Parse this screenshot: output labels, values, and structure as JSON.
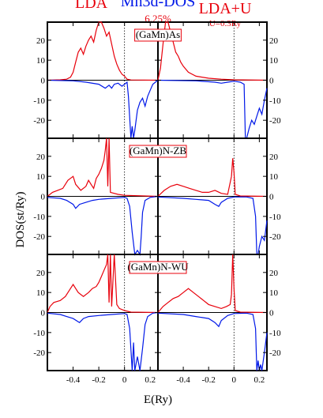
{
  "header": {
    "left_title": "LDA",
    "center_title": "Mn3d-DOS",
    "center_subtitle": "6.25%",
    "right_title": "LDA+U",
    "right_subtitle": "U=0.3Ry"
  },
  "axes": {
    "ylabel": "DOS(st/Ry)",
    "xlabel": "E(Ry)",
    "y_tick_labels": [
      "20",
      "10",
      "0",
      "-10",
      "-20"
    ],
    "x_tick_labels_left": [
      "-0.4",
      "-0.2",
      "0",
      "0.2"
    ],
    "x_tick_labels_right": [
      "-0.4",
      "-0.2",
      "0",
      "0.2"
    ]
  },
  "colors": {
    "spin_up": "#e8000b",
    "spin_down": "#0018e8",
    "title_red": "#e8000b",
    "zero_line": "#000000"
  },
  "chart_data": {
    "type": "line",
    "xlabel": "E(Ry)",
    "ylabel": "DOS(st/Ry)",
    "xlim": [
      -0.6,
      0.26
    ],
    "ylim": [
      -29,
      29
    ],
    "x_ticks": [
      -0.4,
      -0.2,
      0,
      0.2
    ],
    "y_ticks": [
      20,
      10,
      0,
      -10,
      -20
    ],
    "fermi_level": 0,
    "columns": [
      "LDA",
      "LDA+U"
    ],
    "panels": [
      {
        "label": "(GaMn)As",
        "LDA": {
          "up": [
            [
              -0.6,
              0
            ],
            [
              -0.5,
              0.2
            ],
            [
              -0.45,
              0.5
            ],
            [
              -0.42,
              1.5
            ],
            [
              -0.4,
              4
            ],
            [
              -0.38,
              9
            ],
            [
              -0.36,
              14
            ],
            [
              -0.34,
              16
            ],
            [
              -0.32,
              13
            ],
            [
              -0.3,
              17
            ],
            [
              -0.28,
              20
            ],
            [
              -0.26,
              22
            ],
            [
              -0.24,
              19
            ],
            [
              -0.22,
              25
            ],
            [
              -0.2,
              29
            ],
            [
              -0.18,
              29
            ],
            [
              -0.16,
              26
            ],
            [
              -0.14,
              22
            ],
            [
              -0.12,
              24
            ],
            [
              -0.1,
              18
            ],
            [
              -0.08,
              12
            ],
            [
              -0.06,
              8
            ],
            [
              -0.04,
              5
            ],
            [
              -0.02,
              3
            ],
            [
              0,
              2
            ],
            [
              0.02,
              0.5
            ],
            [
              0.05,
              0.1
            ],
            [
              0.26,
              0
            ]
          ],
          "down": [
            [
              -0.6,
              0
            ],
            [
              -0.4,
              -0.3
            ],
            [
              -0.3,
              -1
            ],
            [
              -0.2,
              -2
            ],
            [
              -0.15,
              -4
            ],
            [
              -0.12,
              -2.5
            ],
            [
              -0.1,
              -4
            ],
            [
              -0.08,
              -2
            ],
            [
              -0.05,
              -1.5
            ],
            [
              -0.02,
              -3
            ],
            [
              0,
              -2
            ],
            [
              0.02,
              -1
            ],
            [
              0.03,
              -8
            ],
            [
              0.05,
              -29
            ],
            [
              0.06,
              -23
            ],
            [
              0.07,
              -29
            ],
            [
              0.08,
              -25
            ],
            [
              0.1,
              -15
            ],
            [
              0.12,
              -11
            ],
            [
              0.14,
              -9
            ],
            [
              0.16,
              -13
            ],
            [
              0.18,
              -8
            ],
            [
              0.2,
              -5
            ],
            [
              0.22,
              -2
            ],
            [
              0.26,
              0
            ]
          ]
        },
        "LDA+U": {
          "up": [
            [
              -0.6,
              0
            ],
            [
              -0.58,
              6
            ],
            [
              -0.56,
              18
            ],
            [
              -0.54,
              29
            ],
            [
              -0.52,
              29
            ],
            [
              -0.5,
              24
            ],
            [
              -0.48,
              19
            ],
            [
              -0.46,
              14
            ],
            [
              -0.44,
              12
            ],
            [
              -0.42,
              9
            ],
            [
              -0.4,
              7
            ],
            [
              -0.36,
              4
            ],
            [
              -0.3,
              2
            ],
            [
              -0.2,
              1
            ],
            [
              -0.1,
              0.5
            ],
            [
              0,
              0.2
            ],
            [
              0.26,
              0
            ]
          ],
          "down": [
            [
              -0.6,
              0
            ],
            [
              -0.3,
              -0.3
            ],
            [
              -0.15,
              -1
            ],
            [
              -0.1,
              -1.5
            ],
            [
              -0.05,
              -1
            ],
            [
              0,
              -0.5
            ],
            [
              0.05,
              -1
            ],
            [
              0.08,
              -2
            ],
            [
              0.09,
              -29
            ],
            [
              0.1,
              -29
            ],
            [
              0.12,
              -24
            ],
            [
              0.14,
              -20
            ],
            [
              0.16,
              -22
            ],
            [
              0.18,
              -18
            ],
            [
              0.2,
              -14
            ],
            [
              0.22,
              -17
            ],
            [
              0.24,
              -10
            ],
            [
              0.26,
              -4
            ]
          ]
        }
      },
      {
        "label": "(GaMn)N-ZB",
        "LDA": {
          "up": [
            [
              -0.6,
              0
            ],
            [
              -0.56,
              2
            ],
            [
              -0.52,
              3
            ],
            [
              -0.48,
              4
            ],
            [
              -0.44,
              8
            ],
            [
              -0.4,
              10
            ],
            [
              -0.38,
              6
            ],
            [
              -0.34,
              3
            ],
            [
              -0.3,
              5
            ],
            [
              -0.28,
              8
            ],
            [
              -0.26,
              6
            ],
            [
              -0.24,
              4
            ],
            [
              -0.22,
              9
            ],
            [
              -0.2,
              11
            ],
            [
              -0.18,
              14
            ],
            [
              -0.16,
              18
            ],
            [
              -0.15,
              23
            ],
            [
              -0.14,
              29
            ],
            [
              -0.13,
              5
            ],
            [
              -0.12,
              29
            ],
            [
              -0.11,
              2
            ],
            [
              -0.05,
              1
            ],
            [
              0,
              0.5
            ],
            [
              0.26,
              0
            ]
          ],
          "down": [
            [
              -0.6,
              -0.5
            ],
            [
              -0.5,
              -1
            ],
            [
              -0.45,
              -2
            ],
            [
              -0.4,
              -4
            ],
            [
              -0.38,
              -6
            ],
            [
              -0.35,
              -4
            ],
            [
              -0.3,
              -3
            ],
            [
              -0.25,
              -2
            ],
            [
              -0.2,
              -1.5
            ],
            [
              -0.1,
              -1
            ],
            [
              0,
              -0.5
            ],
            [
              0.02,
              -1
            ],
            [
              0.04,
              -5
            ],
            [
              0.06,
              -18
            ],
            [
              0.08,
              -29
            ],
            [
              0.1,
              -27
            ],
            [
              0.12,
              -29
            ],
            [
              0.13,
              -20
            ],
            [
              0.14,
              -8
            ],
            [
              0.16,
              -2
            ],
            [
              0.2,
              -0.5
            ],
            [
              0.26,
              0
            ]
          ]
        },
        "LDA+U": {
          "up": [
            [
              -0.6,
              0
            ],
            [
              -0.55,
              3
            ],
            [
              -0.5,
              5
            ],
            [
              -0.45,
              6
            ],
            [
              -0.4,
              5
            ],
            [
              -0.35,
              4
            ],
            [
              -0.3,
              3
            ],
            [
              -0.25,
              2
            ],
            [
              -0.2,
              2
            ],
            [
              -0.15,
              3
            ],
            [
              -0.1,
              1.5
            ],
            [
              -0.05,
              1
            ],
            [
              -0.02,
              10
            ],
            [
              -0.01,
              19
            ],
            [
              0,
              12
            ],
            [
              0.01,
              1
            ],
            [
              0.05,
              0.2
            ],
            [
              0.26,
              0
            ]
          ],
          "down": [
            [
              -0.6,
              -0.3
            ],
            [
              -0.4,
              -1
            ],
            [
              -0.3,
              -1.5
            ],
            [
              -0.2,
              -2
            ],
            [
              -0.15,
              -4
            ],
            [
              -0.12,
              -5
            ],
            [
              -0.1,
              -3
            ],
            [
              -0.05,
              -1
            ],
            [
              0,
              -0.3
            ],
            [
              0.1,
              -0.3
            ],
            [
              0.15,
              -1
            ],
            [
              0.17,
              -10
            ],
            [
              0.18,
              -29
            ],
            [
              0.19,
              -29
            ],
            [
              0.2,
              -25
            ],
            [
              0.22,
              -20
            ],
            [
              0.24,
              -22
            ],
            [
              0.26,
              -12
            ]
          ]
        }
      },
      {
        "label": "(GaMn)N-WU",
        "LDA": {
          "up": [
            [
              -0.6,
              0
            ],
            [
              -0.58,
              3
            ],
            [
              -0.55,
              5
            ],
            [
              -0.5,
              6
            ],
            [
              -0.46,
              8
            ],
            [
              -0.42,
              12
            ],
            [
              -0.4,
              14
            ],
            [
              -0.38,
              12
            ],
            [
              -0.36,
              10
            ],
            [
              -0.32,
              8
            ],
            [
              -0.28,
              10
            ],
            [
              -0.25,
              12
            ],
            [
              -0.22,
              13
            ],
            [
              -0.2,
              15
            ],
            [
              -0.18,
              18
            ],
            [
              -0.16,
              21
            ],
            [
              -0.14,
              24
            ],
            [
              -0.13,
              29
            ],
            [
              -0.12,
              5
            ],
            [
              -0.11,
              29
            ],
            [
              -0.1,
              3
            ],
            [
              -0.08,
              29
            ],
            [
              -0.06,
              4
            ],
            [
              -0.04,
              2
            ],
            [
              0,
              1
            ],
            [
              0.05,
              0.2
            ],
            [
              0.26,
              0
            ]
          ],
          "down": [
            [
              -0.6,
              -0.3
            ],
            [
              -0.5,
              -1
            ],
            [
              -0.45,
              -2
            ],
            [
              -0.4,
              -3
            ],
            [
              -0.35,
              -5
            ],
            [
              -0.32,
              -3
            ],
            [
              -0.28,
              -2
            ],
            [
              -0.2,
              -1.5
            ],
            [
              -0.1,
              -1
            ],
            [
              0,
              -0.5
            ],
            [
              0.02,
              -1
            ],
            [
              0.04,
              -8
            ],
            [
              0.06,
              -29
            ],
            [
              0.07,
              -15
            ],
            [
              0.08,
              -29
            ],
            [
              0.1,
              -22
            ],
            [
              0.12,
              -29
            ],
            [
              0.14,
              -18
            ],
            [
              0.16,
              -6
            ],
            [
              0.18,
              -2
            ],
            [
              0.22,
              -0.3
            ],
            [
              0.26,
              0
            ]
          ]
        },
        "LDA+U": {
          "up": [
            [
              -0.6,
              0
            ],
            [
              -0.56,
              3
            ],
            [
              -0.52,
              5
            ],
            [
              -0.48,
              7
            ],
            [
              -0.44,
              8
            ],
            [
              -0.4,
              10
            ],
            [
              -0.36,
              12
            ],
            [
              -0.32,
              10
            ],
            [
              -0.28,
              8
            ],
            [
              -0.24,
              6
            ],
            [
              -0.2,
              4
            ],
            [
              -0.15,
              3
            ],
            [
              -0.1,
              2
            ],
            [
              -0.06,
              3
            ],
            [
              -0.03,
              4
            ],
            [
              -0.02,
              9
            ],
            [
              -0.01,
              29
            ],
            [
              0,
              12
            ],
            [
              0.01,
              1
            ],
            [
              0.05,
              0.2
            ],
            [
              0.26,
              0
            ]
          ],
          "down": [
            [
              -0.6,
              -0.3
            ],
            [
              -0.4,
              -1
            ],
            [
              -0.3,
              -2
            ],
            [
              -0.2,
              -3
            ],
            [
              -0.15,
              -5
            ],
            [
              -0.12,
              -7
            ],
            [
              -0.1,
              -4
            ],
            [
              -0.05,
              -1.5
            ],
            [
              0,
              -0.5
            ],
            [
              0.1,
              -0.3
            ],
            [
              0.15,
              -1
            ],
            [
              0.17,
              -8
            ],
            [
              0.18,
              -29
            ],
            [
              0.19,
              -24
            ],
            [
              0.2,
              -29
            ],
            [
              0.21,
              -26
            ],
            [
              0.22,
              -29
            ],
            [
              0.24,
              -20
            ],
            [
              0.26,
              -10
            ]
          ]
        }
      }
    ]
  }
}
